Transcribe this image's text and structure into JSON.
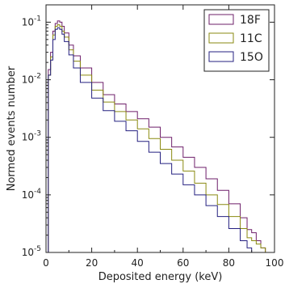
{
  "chart_data": {
    "type": "line",
    "step": true,
    "title": "",
    "xlabel": "Deposited energy (keV)",
    "ylabel": "Normed events number",
    "xlim": [
      0,
      100
    ],
    "ylim": [
      1e-05,
      0.2
    ],
    "yscale": "log",
    "grid": false,
    "legend_position": "top-right",
    "x_ticks": [
      0,
      20,
      40,
      60,
      80,
      100
    ],
    "x_tick_labels": [
      "0",
      "20",
      "40",
      "60",
      "80",
      "100"
    ],
    "y_ticks": [
      0.1,
      0.01,
      0.001,
      0.0001,
      1e-05
    ],
    "y_tick_labels": [
      {
        "base": "10",
        "exp": "-1"
      },
      {
        "base": "10",
        "exp": "-2"
      },
      {
        "base": "10",
        "exp": "-3"
      },
      {
        "base": "10",
        "exp": "-4"
      },
      {
        "base": "10",
        "exp": "-5"
      }
    ],
    "series": [
      {
        "name": "18F",
        "color": "#6e1f6a",
        "x": [
          1,
          2,
          3,
          4,
          5,
          6,
          7,
          8,
          10,
          12,
          15,
          20,
          25,
          30,
          35,
          40,
          45,
          50,
          55,
          60,
          65,
          70,
          75,
          80,
          85,
          88,
          90,
          92,
          94,
          96,
          98
        ],
        "y": [
          0.015,
          0.03,
          0.07,
          0.095,
          0.105,
          0.1,
          0.085,
          0.065,
          0.04,
          0.026,
          0.016,
          0.009,
          0.0055,
          0.0038,
          0.0028,
          0.0021,
          0.0015,
          0.001,
          0.00068,
          0.00045,
          0.0003,
          0.00019,
          0.00012,
          7e-05,
          4e-05,
          2.5e-05,
          2.2e-05,
          1.6e-05,
          1.2e-05,
          1e-05,
          1e-05
        ]
      },
      {
        "name": "11C",
        "color": "#8a8a10",
        "x": [
          1,
          2,
          3,
          4,
          5,
          6,
          7,
          8,
          10,
          12,
          15,
          20,
          25,
          30,
          35,
          40,
          45,
          50,
          55,
          60,
          65,
          70,
          75,
          80,
          85,
          88,
          90,
          92,
          94,
          96
        ],
        "y": [
          0.012,
          0.025,
          0.06,
          0.085,
          0.09,
          0.085,
          0.07,
          0.055,
          0.033,
          0.021,
          0.012,
          0.0066,
          0.0041,
          0.0028,
          0.002,
          0.0014,
          0.00095,
          0.00062,
          0.0004,
          0.00026,
          0.00016,
          0.0001,
          6.8e-05,
          4.2e-05,
          2.6e-05,
          1.8e-05,
          1.6e-05,
          1.4e-05,
          1.2e-05,
          1e-05
        ]
      },
      {
        "name": "15O",
        "color": "#252080",
        "x": [
          1,
          2,
          3,
          4,
          5,
          6,
          7,
          8,
          10,
          12,
          15,
          20,
          25,
          30,
          35,
          40,
          45,
          50,
          55,
          60,
          65,
          70,
          75,
          80,
          85,
          88,
          90
        ],
        "y": [
          0.012,
          0.022,
          0.05,
          0.075,
          0.08,
          0.075,
          0.062,
          0.046,
          0.027,
          0.016,
          0.009,
          0.0048,
          0.0029,
          0.0019,
          0.0013,
          0.00085,
          0.00055,
          0.00035,
          0.00023,
          0.00015,
          0.0001,
          6.5e-05,
          4.2e-05,
          2.6e-05,
          1.6e-05,
          1.2e-05,
          1e-05
        ]
      }
    ]
  }
}
